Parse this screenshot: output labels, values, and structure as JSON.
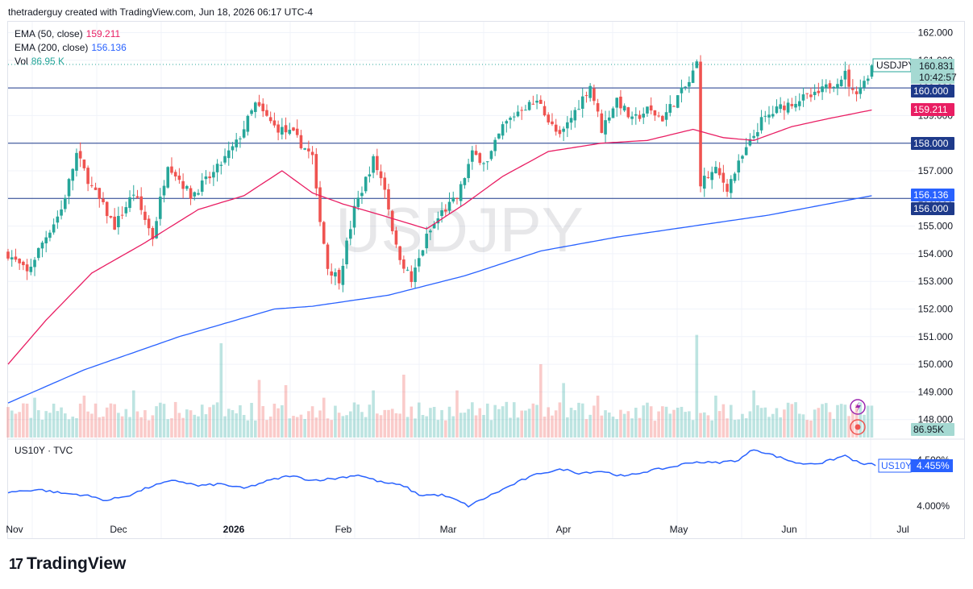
{
  "header": {
    "text": "thetraderguy created with TradingView.com, Jun 18, 2026 06:17 UTC-4"
  },
  "legend": [
    {
      "label": "EMA (50, close)",
      "value": "159.211",
      "color": "#e91e63"
    },
    {
      "label": "EMA (200, close)",
      "value": "156.136",
      "color": "#2962ff"
    },
    {
      "label": "Vol",
      "value": "86.95 K",
      "color": "#26a69a"
    }
  ],
  "watermark": "USDJPY",
  "colors": {
    "up": "#26a69a",
    "down": "#ef5350",
    "ema50": "#e91e63",
    "ema200": "#2962ff",
    "us10y": "#2962ff",
    "level": "#1e3a8a"
  },
  "lower_pane": {
    "label": "US10Y · TVC"
  },
  "branding": {
    "name": "TradingView"
  },
  "chart_data": [
    {
      "type": "candlestick",
      "symbol": "USDJPY",
      "y_ticks": [
        162.0,
        161.0,
        160.0,
        159.0,
        158.0,
        157.0,
        156.0,
        155.0,
        154.0,
        153.0,
        152.0,
        151.0,
        150.0,
        149.0,
        148.0
      ],
      "y_tick_labels": [
        "162.000",
        "161.000",
        "160.000",
        "159.000",
        "158.000",
        "157.000",
        "156.000",
        "155.000",
        "154.000",
        "153.000",
        "152.000",
        "151.000",
        "150.000",
        "149.000",
        "148.000"
      ],
      "ylim": [
        147.6,
        162.5
      ],
      "x_labels": [
        "Nov",
        "Dec",
        "2026",
        "Feb",
        "Mar",
        "Apr",
        "May",
        "Jun",
        "Jul"
      ],
      "horizontal_levels": [
        160.0,
        158.0,
        156.0
      ],
      "price_tags": [
        {
          "label": "USDJPY",
          "value": "160.831",
          "sub": "10:42:57",
          "kind": "symbol"
        },
        {
          "value": "160.000",
          "kind": "level"
        },
        {
          "value": "159.211",
          "kind": "ema50"
        },
        {
          "value": "158.000",
          "kind": "level"
        },
        {
          "value": "156.136",
          "kind": "ema200"
        },
        {
          "value": "156.000",
          "kind": "level"
        },
        {
          "value": "86.95K",
          "kind": "volume"
        }
      ],
      "close_anchors": [
        [
          0,
          154.0
        ],
        [
          5,
          153.3
        ],
        [
          9,
          154.4
        ],
        [
          14,
          155.6
        ],
        [
          18,
          157.6
        ],
        [
          22,
          156.4
        ],
        [
          28,
          155.0
        ],
        [
          33,
          156.2
        ],
        [
          38,
          154.6
        ],
        [
          42,
          157.3
        ],
        [
          48,
          156.1
        ],
        [
          54,
          156.9
        ],
        [
          60,
          158.0
        ],
        [
          65,
          159.4
        ],
        [
          70,
          158.6
        ],
        [
          75,
          158.3
        ],
        [
          80,
          157.5
        ],
        [
          81,
          156.2
        ],
        [
          84,
          153.5
        ],
        [
          87,
          153.1
        ],
        [
          91,
          155.6
        ],
        [
          96,
          157.4
        ],
        [
          99,
          156.4
        ],
        [
          102,
          154.2
        ],
        [
          106,
          153.0
        ],
        [
          110,
          154.6
        ],
        [
          114,
          155.5
        ],
        [
          118,
          156.0
        ],
        [
          122,
          157.6
        ],
        [
          126,
          157.3
        ],
        [
          130,
          158.6
        ],
        [
          135,
          159.3
        ],
        [
          140,
          159.5
        ],
        [
          142,
          158.8
        ],
        [
          145,
          158.2
        ],
        [
          150,
          159.4
        ],
        [
          153,
          160.1
        ],
        [
          156,
          158.5
        ],
        [
          160,
          159.6
        ],
        [
          164,
          158.8
        ],
        [
          168,
          159.2
        ],
        [
          172,
          158.9
        ],
        [
          175,
          159.5
        ],
        [
          179,
          160.2
        ],
        [
          181,
          160.9
        ],
        [
          182,
          156.6
        ],
        [
          186,
          157.0
        ],
        [
          189,
          156.4
        ],
        [
          193,
          157.5
        ],
        [
          198,
          158.8
        ],
        [
          203,
          159.3
        ],
        [
          208,
          159.6
        ],
        [
          212,
          159.7
        ],
        [
          216,
          160.1
        ],
        [
          220,
          160.5
        ],
        [
          222,
          159.8
        ],
        [
          225,
          160.2
        ],
        [
          227,
          160.8
        ]
      ],
      "ema50_anchors": [
        [
          0,
          150.0
        ],
        [
          10,
          151.6
        ],
        [
          22,
          153.3
        ],
        [
          36,
          154.4
        ],
        [
          50,
          155.6
        ],
        [
          62,
          156.1
        ],
        [
          72,
          157.0
        ],
        [
          80,
          156.2
        ],
        [
          88,
          155.8
        ],
        [
          98,
          155.4
        ],
        [
          110,
          154.9
        ],
        [
          120,
          155.8
        ],
        [
          130,
          156.8
        ],
        [
          142,
          157.7
        ],
        [
          156,
          158.0
        ],
        [
          168,
          158.1
        ],
        [
          180,
          158.5
        ],
        [
          188,
          158.2
        ],
        [
          196,
          158.1
        ],
        [
          206,
          158.6
        ],
        [
          216,
          158.9
        ],
        [
          227,
          159.2
        ]
      ],
      "ema200_anchors": [
        [
          0,
          148.6
        ],
        [
          20,
          149.8
        ],
        [
          45,
          151.0
        ],
        [
          70,
          152.0
        ],
        [
          80,
          152.1
        ],
        [
          100,
          152.5
        ],
        [
          120,
          153.2
        ],
        [
          140,
          154.1
        ],
        [
          160,
          154.6
        ],
        [
          180,
          155.0
        ],
        [
          200,
          155.4
        ],
        [
          227,
          156.1
        ]
      ],
      "volume_spikes": [
        [
          7,
          0.38
        ],
        [
          20,
          0.4
        ],
        [
          33,
          0.45
        ],
        [
          56,
          0.9
        ],
        [
          66,
          0.55
        ],
        [
          73,
          0.5
        ],
        [
          83,
          0.38
        ],
        [
          96,
          0.45
        ],
        [
          104,
          0.6
        ],
        [
          118,
          0.45
        ],
        [
          140,
          0.7
        ],
        [
          146,
          0.52
        ],
        [
          155,
          0.4
        ],
        [
          181,
          0.98
        ],
        [
          186,
          0.4
        ],
        [
          196,
          0.45
        ],
        [
          206,
          0.32
        ],
        [
          214,
          0.32
        ]
      ]
    },
    {
      "type": "line",
      "symbol": "US10Y",
      "label": "US10Y · TVC",
      "current_value": "4.455%",
      "y_ticks": [
        4.0,
        4.5
      ],
      "y_tick_labels": [
        "4.000%",
        "4.500%"
      ],
      "ylim": [
        3.85,
        4.62
      ],
      "anchors": [
        [
          0,
          4.15
        ],
        [
          8,
          4.18
        ],
        [
          14,
          4.14
        ],
        [
          20,
          4.12
        ],
        [
          26,
          4.06
        ],
        [
          32,
          4.12
        ],
        [
          38,
          4.22
        ],
        [
          44,
          4.28
        ],
        [
          50,
          4.22
        ],
        [
          56,
          4.24
        ],
        [
          62,
          4.19
        ],
        [
          68,
          4.27
        ],
        [
          74,
          4.33
        ],
        [
          80,
          4.28
        ],
        [
          86,
          4.3
        ],
        [
          92,
          4.34
        ],
        [
          98,
          4.26
        ],
        [
          104,
          4.22
        ],
        [
          108,
          4.12
        ],
        [
          114,
          4.12
        ],
        [
          118,
          4.06
        ],
        [
          121,
          4.0
        ],
        [
          128,
          4.14
        ],
        [
          135,
          4.28
        ],
        [
          140,
          4.36
        ],
        [
          146,
          4.4
        ],
        [
          150,
          4.36
        ],
        [
          156,
          4.38
        ],
        [
          162,
          4.32
        ],
        [
          168,
          4.38
        ],
        [
          174,
          4.42
        ],
        [
          180,
          4.48
        ],
        [
          186,
          4.47
        ],
        [
          192,
          4.5
        ],
        [
          196,
          4.62
        ],
        [
          202,
          4.54
        ],
        [
          208,
          4.46
        ],
        [
          214,
          4.47
        ],
        [
          220,
          4.55
        ],
        [
          224,
          4.46
        ],
        [
          228,
          4.45
        ]
      ]
    }
  ]
}
